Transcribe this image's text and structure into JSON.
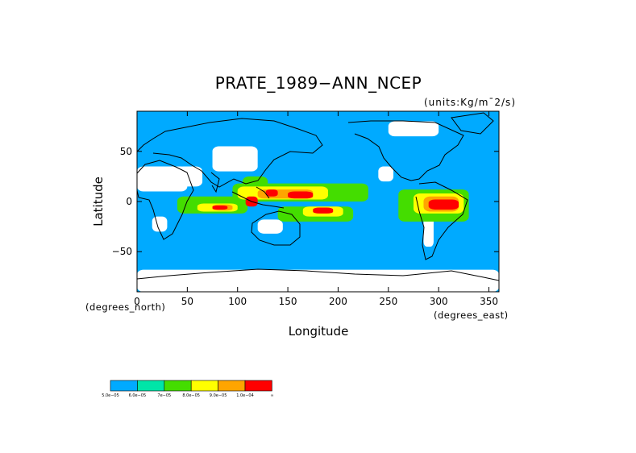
{
  "chart_data": {
    "type": "heatmap",
    "title": "PRATE_1989−ANN_NCEP",
    "units": "(units:Kg/m¯2/s)",
    "xlabel": "Longitude",
    "ylabel": "Latitude",
    "x_unit_note": "(degrees_east)",
    "y_unit_note": "(degrees_north)",
    "xlim": [
      0,
      360
    ],
    "ylim": [
      -90,
      90
    ],
    "x_ticks": [
      {
        "value": 0,
        "label": "0"
      },
      {
        "value": 50,
        "label": "50"
      },
      {
        "value": 100,
        "label": "100"
      },
      {
        "value": 150,
        "label": "150"
      },
      {
        "value": 200,
        "label": "200"
      },
      {
        "value": 250,
        "label": "250"
      },
      {
        "value": 300,
        "label": "300"
      },
      {
        "value": 350,
        "label": "350"
      }
    ],
    "y_ticks": [
      {
        "value": 50,
        "label": "50"
      },
      {
        "value": 0,
        "label": "0"
      },
      {
        "value": -50,
        "label": "−50"
      }
    ],
    "background_level_color": "#00aaff",
    "colorbar": {
      "colors": [
        "#00aaff",
        "#00e5a8",
        "#44dd00",
        "#ffff00",
        "#ffa500",
        "#ff0000"
      ],
      "labels": [
        "5.0e−05",
        "6.0e−05",
        "7e−05",
        "8.0e−05",
        "9.0e−05",
        "1.0e−04",
        "∞"
      ]
    },
    "regions": [
      {
        "level": "white",
        "lon": [
          0,
          50
        ],
        "lat": [
          10,
          35
        ]
      },
      {
        "level": "white",
        "lon": [
          40,
          65
        ],
        "lat": [
          15,
          35
        ]
      },
      {
        "level": "white",
        "lon": [
          75,
          120
        ],
        "lat": [
          30,
          55
        ]
      },
      {
        "level": "white",
        "lon": [
          15,
          30
        ],
        "lat": [
          -30,
          -15
        ]
      },
      {
        "level": "white",
        "lon": [
          120,
          145
        ],
        "lat": [
          -32,
          -18
        ]
      },
      {
        "level": "white",
        "lon": [
          240,
          255
        ],
        "lat": [
          20,
          35
        ]
      },
      {
        "level": "white",
        "lon": [
          285,
          295
        ],
        "lat": [
          -45,
          -15
        ]
      },
      {
        "level": "white",
        "lon": [
          0,
          360
        ],
        "lat": [
          -90,
          -68
        ]
      },
      {
        "level": "white",
        "lon": [
          250,
          300
        ],
        "lat": [
          65,
          80
        ]
      },
      {
        "level": "green",
        "lon": [
          40,
          110
        ],
        "lat": [
          -12,
          5
        ]
      },
      {
        "level": "green",
        "lon": [
          95,
          230
        ],
        "lat": [
          0,
          18
        ]
      },
      {
        "level": "green",
        "lon": [
          140,
          215
        ],
        "lat": [
          -20,
          -5
        ]
      },
      {
        "level": "green",
        "lon": [
          260,
          330
        ],
        "lat": [
          -20,
          12
        ]
      },
      {
        "level": "green",
        "lon": [
          105,
          130
        ],
        "lat": [
          5,
          25
        ]
      },
      {
        "level": "yellow",
        "lon": [
          60,
          100
        ],
        "lat": [
          -10,
          -2
        ]
      },
      {
        "level": "yellow",
        "lon": [
          100,
          190
        ],
        "lat": [
          2,
          15
        ]
      },
      {
        "level": "yellow",
        "lon": [
          165,
          205
        ],
        "lat": [
          -15,
          -5
        ]
      },
      {
        "level": "yellow",
        "lon": [
          275,
          325
        ],
        "lat": [
          -12,
          8
        ]
      },
      {
        "level": "orange",
        "lon": [
          75,
          95
        ],
        "lat": [
          -9,
          -3
        ]
      },
      {
        "level": "orange",
        "lon": [
          120,
          175
        ],
        "lat": [
          3,
          12
        ]
      },
      {
        "level": "orange",
        "lon": [
          285,
          320
        ],
        "lat": [
          -10,
          5
        ]
      },
      {
        "level": "red",
        "lon": [
          75,
          90
        ],
        "lat": [
          -8,
          -4
        ]
      },
      {
        "level": "red",
        "lon": [
          108,
          120
        ],
        "lat": [
          -5,
          5
        ]
      },
      {
        "level": "red",
        "lon": [
          128,
          140
        ],
        "lat": [
          5,
          12
        ]
      },
      {
        "level": "red",
        "lon": [
          150,
          175
        ],
        "lat": [
          3,
          10
        ]
      },
      {
        "level": "red",
        "lon": [
          175,
          195
        ],
        "lat": [
          -12,
          -6
        ]
      },
      {
        "level": "red",
        "lon": [
          290,
          320
        ],
        "lat": [
          -8,
          2
        ]
      }
    ]
  }
}
